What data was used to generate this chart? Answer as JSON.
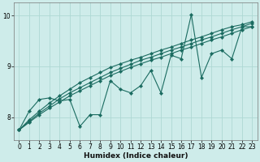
{
  "xlabel": "Humidex (Indice chaleur)",
  "background_color": "#ceecea",
  "grid_color": "#aed8d4",
  "line_color": "#1a6b60",
  "xlim": [
    -0.5,
    23.5
  ],
  "ylim": [
    7.55,
    10.25
  ],
  "yticks": [
    8,
    9,
    10
  ],
  "xticks": [
    0,
    1,
    2,
    3,
    4,
    5,
    6,
    7,
    8,
    9,
    10,
    11,
    12,
    13,
    14,
    15,
    16,
    17,
    18,
    19,
    20,
    21,
    22,
    23
  ],
  "zigzag": [
    7.75,
    8.12,
    8.35,
    8.38,
    8.32,
    8.35,
    7.82,
    8.05,
    8.05,
    8.72,
    8.55,
    8.48,
    8.62,
    8.92,
    8.48,
    9.22,
    9.15,
    10.02,
    8.78,
    9.25,
    9.32,
    9.15,
    9.78,
    9.78
  ],
  "line1": [
    7.75,
    7.95,
    8.12,
    8.28,
    8.42,
    8.55,
    8.68,
    8.78,
    8.88,
    8.98,
    9.05,
    9.12,
    9.18,
    9.25,
    9.32,
    9.38,
    9.45,
    9.52,
    9.58,
    9.65,
    9.72,
    9.78,
    9.82,
    9.88
  ],
  "line2": [
    7.75,
    7.92,
    8.08,
    8.22,
    8.36,
    8.48,
    8.58,
    8.68,
    8.78,
    8.88,
    8.96,
    9.04,
    9.12,
    9.18,
    9.25,
    9.32,
    9.38,
    9.45,
    9.52,
    9.58,
    9.65,
    9.72,
    9.78,
    9.85
  ],
  "line3": [
    7.75,
    7.9,
    8.05,
    8.18,
    8.3,
    8.42,
    8.52,
    8.62,
    8.72,
    8.82,
    8.9,
    8.98,
    9.05,
    9.12,
    9.18,
    9.25,
    9.32,
    9.38,
    9.45,
    9.52,
    9.58,
    9.65,
    9.72,
    9.78
  ]
}
